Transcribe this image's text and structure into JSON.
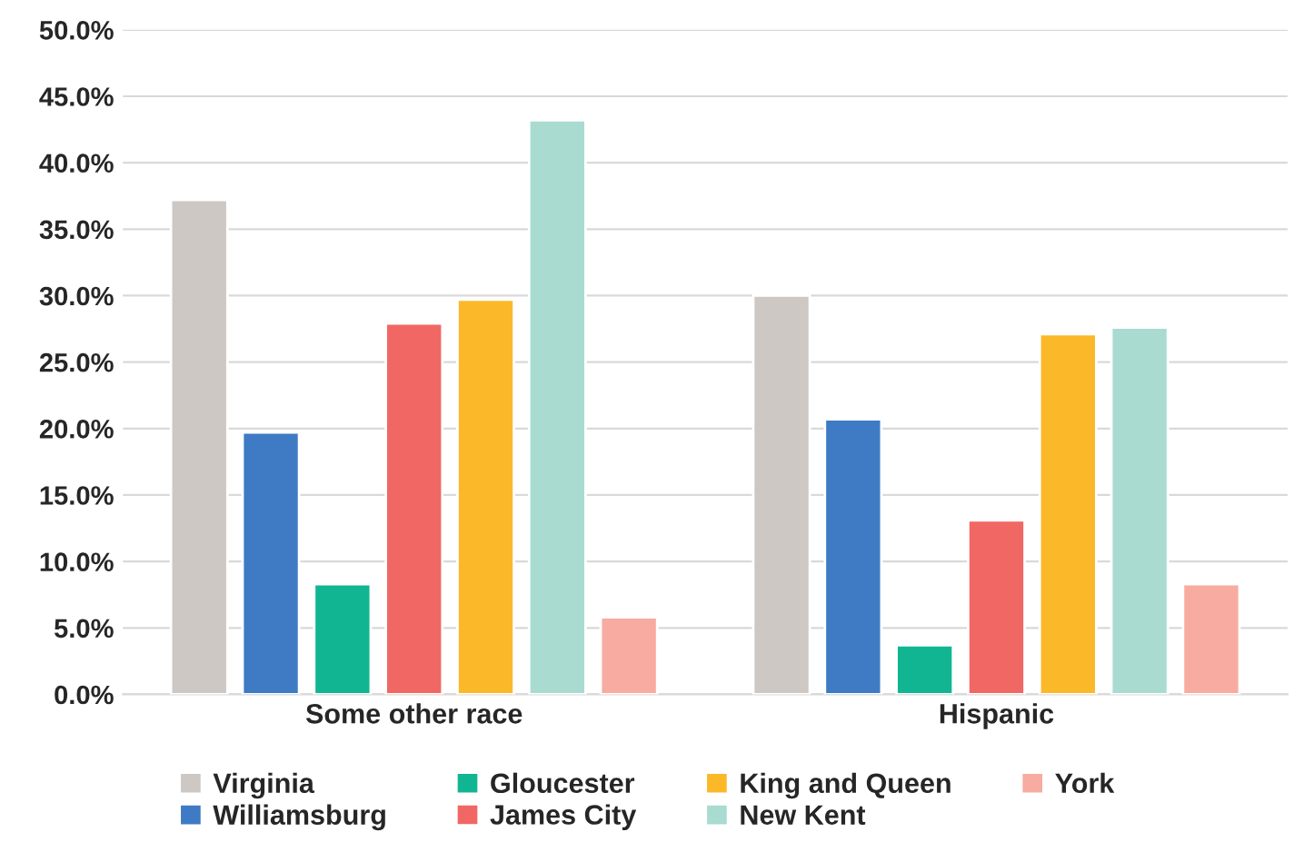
{
  "chart_data": {
    "type": "bar",
    "categories": [
      "Some other race",
      "Hispanic"
    ],
    "series": [
      {
        "name": "Virginia",
        "color": "#cdc8c4",
        "values": [
          37.2,
          30.0
        ]
      },
      {
        "name": "Williamsburg",
        "color": "#3f7bc4",
        "values": [
          19.7,
          20.7
        ]
      },
      {
        "name": "Gloucester",
        "color": "#12b592",
        "values": [
          8.3,
          3.7
        ]
      },
      {
        "name": "James City",
        "color": "#f06764",
        "values": [
          27.9,
          13.1
        ]
      },
      {
        "name": "King and Queen",
        "color": "#fbb829",
        "values": [
          29.7,
          27.1
        ]
      },
      {
        "name": "New Kent",
        "color": "#a9dbd0",
        "values": [
          43.2,
          27.6
        ]
      },
      {
        "name": "York",
        "color": "#f7aba1",
        "values": [
          5.8,
          8.3
        ]
      }
    ],
    "ylim": [
      0,
      50
    ],
    "yticks": [
      {
        "value": 0,
        "label": "0.0%"
      },
      {
        "value": 5,
        "label": "5.0%"
      },
      {
        "value": 10,
        "label": "10.0%"
      },
      {
        "value": 15,
        "label": "15.0%"
      },
      {
        "value": 20,
        "label": "20.0%"
      },
      {
        "value": 25,
        "label": "25.0%"
      },
      {
        "value": 30,
        "label": "30.0%"
      },
      {
        "value": 35,
        "label": "35.0%"
      },
      {
        "value": 40,
        "label": "40.0%"
      },
      {
        "value": 45,
        "label": "45.0%"
      },
      {
        "value": 50,
        "label": "50.0%"
      }
    ],
    "grid": "y",
    "legend": "bottom"
  }
}
